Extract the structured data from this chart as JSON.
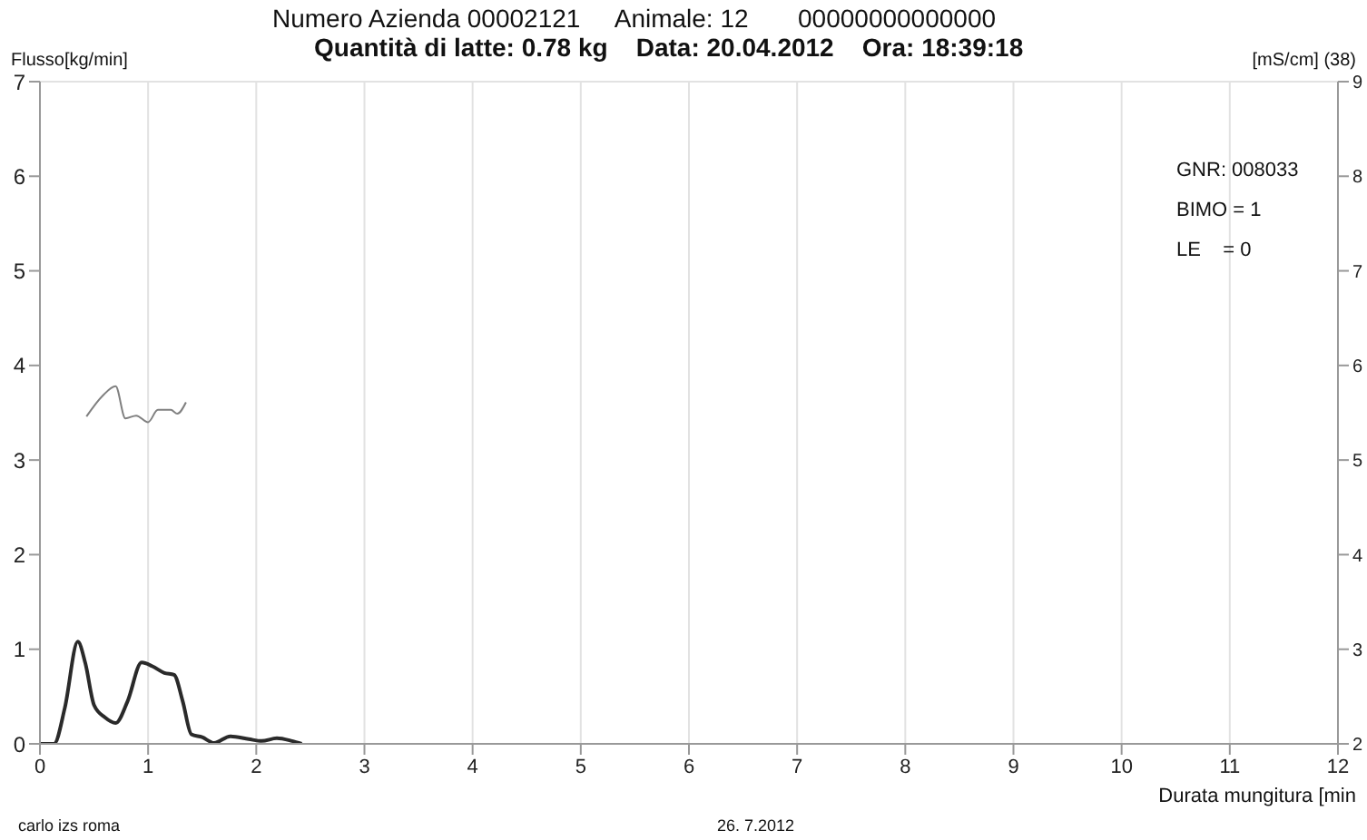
{
  "chart_data": {
    "type": "line",
    "title": "Numero Azienda 00002121     Animale: 12       00000000000000",
    "subtitle": "Quantità di latte: 0.78 kg    Data: 20.04.2012    Ora: 18:39:18",
    "ylabel": "Flusso[kg/min]",
    "y2label": "[mS/cm] (38)",
    "xlabel": "Durata mungitura [min",
    "annotations": [
      "GNR: 008033",
      "BIMO = 1",
      "LE    = 0",
      "carlo izs roma",
      "26. 7.2012"
    ],
    "series": [
      {
        "color": "#2a2a2a",
        "x": [
          0,
          0.13,
          0.23,
          0.35,
          0.42,
          0.5,
          0.6,
          0.7,
          0.81,
          0.94,
          1.04,
          1.15,
          1.24,
          1.32,
          1.4,
          1.5,
          1.61,
          1.76,
          1.93,
          2.05,
          2.19,
          2.33,
          2.42
        ],
        "values": [
          0,
          0,
          0.38,
          1.08,
          0.85,
          0.41,
          0.28,
          0.22,
          0.45,
          0.86,
          0.82,
          0.75,
          0.73,
          0.45,
          0.1,
          0.07,
          0.01,
          0.08,
          0.05,
          0.03,
          0.06,
          0.03,
          0
        ]
      },
      {
        "color": "#808080",
        "axis": "y2",
        "x": [
          0.43,
          0.58,
          0.7,
          0.79,
          0.89,
          1.0,
          1.09,
          1.21,
          1.27,
          1.35
        ],
        "values": [
          5.46,
          5.68,
          5.78,
          5.44,
          5.47,
          5.4,
          5.53,
          5.53,
          5.49,
          5.61
        ]
      }
    ],
    "xlim": [
      0,
      12
    ],
    "xticks": [
      0,
      1,
      2,
      3,
      4,
      5,
      6,
      7,
      8,
      9,
      10,
      11,
      12
    ],
    "ylim": [
      0,
      7
    ],
    "yticks": [
      0,
      1,
      2,
      3,
      4,
      5,
      6,
      7
    ],
    "y2lim": [
      2,
      9
    ],
    "y2ticks": [
      2,
      3,
      4,
      5,
      6,
      7,
      8,
      9
    ],
    "grid": true,
    "marker": "none",
    "line_style": "solid"
  }
}
